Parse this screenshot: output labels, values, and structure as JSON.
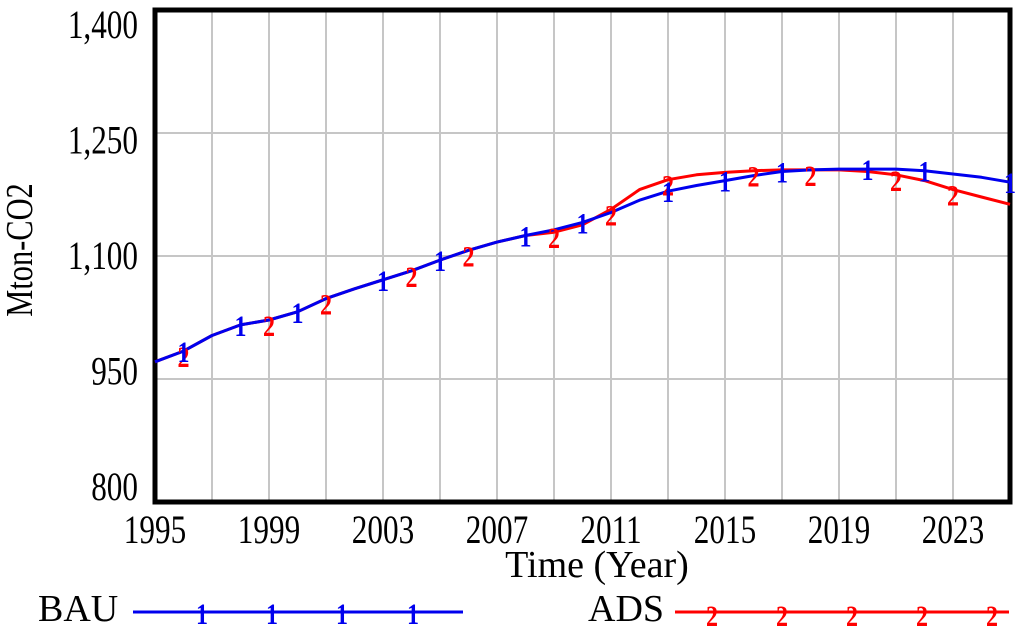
{
  "chart_data": {
    "type": "line",
    "title": "",
    "xlabel": "Time (Year)",
    "ylabel": "Mton-CO2",
    "xlim": [
      1995,
      2025
    ],
    "ylim": [
      800,
      1400
    ],
    "grid": true,
    "legend_position": "bottom",
    "grid_color": "#c6c6c6",
    "frame_color": "#000000",
    "x_tick_years": [
      1995,
      1999,
      2003,
      2007,
      2011,
      2015,
      2019,
      2023
    ],
    "x_grid_step": 2,
    "y_ticks": [
      {
        "value": 800,
        "label": "800"
      },
      {
        "value": 950,
        "label": "950"
      },
      {
        "value": 1100,
        "label": "1,100"
      },
      {
        "value": 1250,
        "label": "1,250"
      },
      {
        "value": 1400,
        "label": "1,400"
      }
    ],
    "x": [
      1995,
      1996,
      1997,
      1998,
      1999,
      2000,
      2001,
      2002,
      2003,
      2004,
      2005,
      2006,
      2007,
      2008,
      2009,
      2010,
      2011,
      2012,
      2013,
      2014,
      2015,
      2016,
      2017,
      2018,
      2019,
      2020,
      2021,
      2022,
      2023,
      2024,
      2025
    ],
    "series": [
      {
        "name": "BAU",
        "color": "#0000ee",
        "marker_glyph": "1",
        "marker_years": [
          1996,
          1998,
          2000,
          2003,
          2005,
          2008,
          2010,
          2013,
          2015,
          2017,
          2020,
          2022,
          2025
        ],
        "values": [
          971,
          984,
          1003,
          1016,
          1022,
          1032,
          1048,
          1060,
          1071,
          1082,
          1095,
          1107,
          1117,
          1125,
          1132,
          1141,
          1153,
          1168,
          1179,
          1186,
          1192,
          1198,
          1203,
          1205,
          1206,
          1206,
          1206,
          1204,
          1200,
          1196,
          1190
        ]
      },
      {
        "name": "ADS",
        "color": "#ff0000",
        "marker_glyph": "2",
        "marker_years": [
          1996,
          1999,
          2001,
          2004,
          2006,
          2009,
          2011,
          2013,
          2016,
          2018,
          2021,
          2023
        ],
        "values": [
          971,
          984,
          1003,
          1016,
          1022,
          1032,
          1048,
          1060,
          1071,
          1082,
          1095,
          1107,
          1117,
          1125,
          1129,
          1138,
          1157,
          1181,
          1193,
          1199,
          1202,
          1204,
          1205,
          1205,
          1205,
          1203,
          1199,
          1192,
          1181,
          1172,
          1163
        ]
      }
    ]
  }
}
